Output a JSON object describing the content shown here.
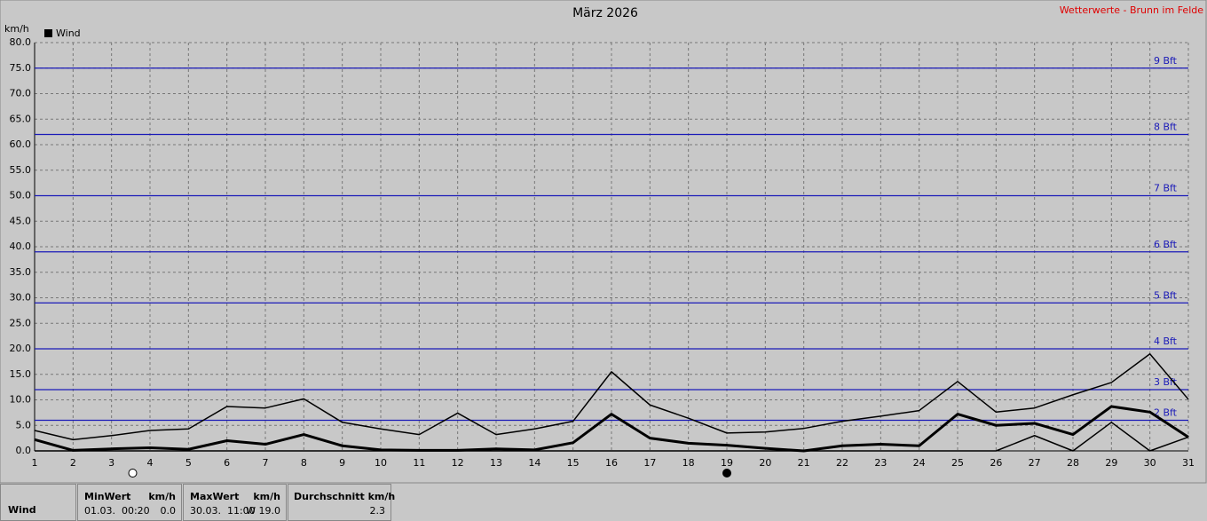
{
  "chart_data": {
    "type": "line",
    "title": "März 2026",
    "source": "Wetterwerte - Brunn im Felde",
    "y_label": "km/h",
    "legend": {
      "name": "Wind",
      "color": "#000000"
    },
    "x": [
      1,
      2,
      3,
      4,
      5,
      6,
      7,
      8,
      9,
      10,
      11,
      12,
      13,
      14,
      15,
      16,
      17,
      18,
      19,
      20,
      21,
      22,
      23,
      24,
      25,
      26,
      27,
      28,
      29,
      30,
      31
    ],
    "xlim": [
      1,
      31
    ],
    "xticks": [
      1,
      2,
      3,
      4,
      5,
      6,
      7,
      8,
      9,
      10,
      11,
      12,
      13,
      14,
      15,
      16,
      17,
      18,
      19,
      20,
      21,
      22,
      23,
      24,
      25,
      26,
      27,
      28,
      29,
      30,
      31
    ],
    "ylim": [
      0,
      80
    ],
    "yticks": [
      {
        "value": 0,
        "label": "0.0"
      },
      {
        "value": 5,
        "label": "5.0"
      },
      {
        "value": 10,
        "label": "10.0"
      },
      {
        "value": 15,
        "label": "15.0"
      },
      {
        "value": 20,
        "label": "20.0"
      },
      {
        "value": 25,
        "label": "25.0"
      },
      {
        "value": 30,
        "label": "30.0"
      },
      {
        "value": 35,
        "label": "35.0"
      },
      {
        "value": 40,
        "label": "40.0"
      },
      {
        "value": 45,
        "label": "45.0"
      },
      {
        "value": 50,
        "label": "50.0"
      },
      {
        "value": 55,
        "label": "55.0"
      },
      {
        "value": 60,
        "label": "60.0"
      },
      {
        "value": 65,
        "label": "65.0"
      },
      {
        "value": 70,
        "label": "70.0"
      },
      {
        "value": 75,
        "label": "75.0"
      },
      {
        "value": 80,
        "label": "80.0"
      }
    ],
    "grid": true,
    "series": [
      {
        "color": "#000000",
        "width": 1.5,
        "values": [
          4.0,
          2.2,
          3.0,
          4.0,
          4.3,
          8.7,
          8.4,
          10.2,
          5.6,
          4.3,
          3.2,
          7.4,
          3.2,
          4.3,
          5.8,
          15.5,
          9.0,
          6.4,
          3.5,
          3.7,
          4.4,
          5.8,
          6.8,
          7.9,
          13.6,
          7.6,
          8.4,
          11.0,
          13.4,
          19.0,
          10.1
        ]
      },
      {
        "color": "#000000",
        "width": 1.5,
        "values": [
          0,
          0,
          0,
          0,
          0,
          0,
          0,
          0,
          0,
          0,
          0,
          0,
          0,
          0,
          0,
          0,
          0,
          0,
          0,
          0,
          0,
          0,
          0,
          0,
          0,
          0,
          3.0,
          0,
          5.6,
          0,
          2.7
        ]
      },
      {
        "color": "#000000",
        "width": 3,
        "values": [
          2.2,
          0.1,
          0.4,
          0.6,
          0.3,
          2.0,
          1.3,
          3.2,
          1.0,
          0.2,
          0.1,
          0.1,
          0.4,
          0.2,
          1.6,
          7.2,
          2.5,
          1.5,
          1.1,
          0.5,
          0.0,
          1.0,
          1.3,
          1.0,
          7.2,
          5.0,
          5.4,
          3.2,
          8.7,
          7.6,
          2.7
        ]
      }
    ],
    "beaufort_color": "#1a1ab8",
    "beaufort": [
      {
        "value": 6,
        "label": "2 Bft"
      },
      {
        "value": 12,
        "label": "3 Bft"
      },
      {
        "value": 20,
        "label": "4 Bft"
      },
      {
        "value": 29,
        "label": "5 Bft"
      },
      {
        "value": 39,
        "label": "6 Bft"
      },
      {
        "value": 50,
        "label": "7 Bft"
      },
      {
        "value": 62,
        "label": "8 Bft"
      },
      {
        "value": 75,
        "label": "9 Bft"
      }
    ],
    "moon_phases": [
      {
        "x": 3.55,
        "fill": "#ffffff"
      },
      {
        "x": 19,
        "fill": "#000000"
      }
    ]
  },
  "summary": {
    "label": "Wind",
    "cells": [
      {
        "head": "MinWert",
        "unit": "km/h",
        "when": "01.03.  00:20",
        "value": "0.0"
      },
      {
        "head": "MaxWert",
        "unit": "km/h",
        "when": "30.03.  11:00",
        "value": "W 19.0"
      },
      {
        "head": "Durchschnitt km/h",
        "value": "2.3"
      }
    ]
  }
}
